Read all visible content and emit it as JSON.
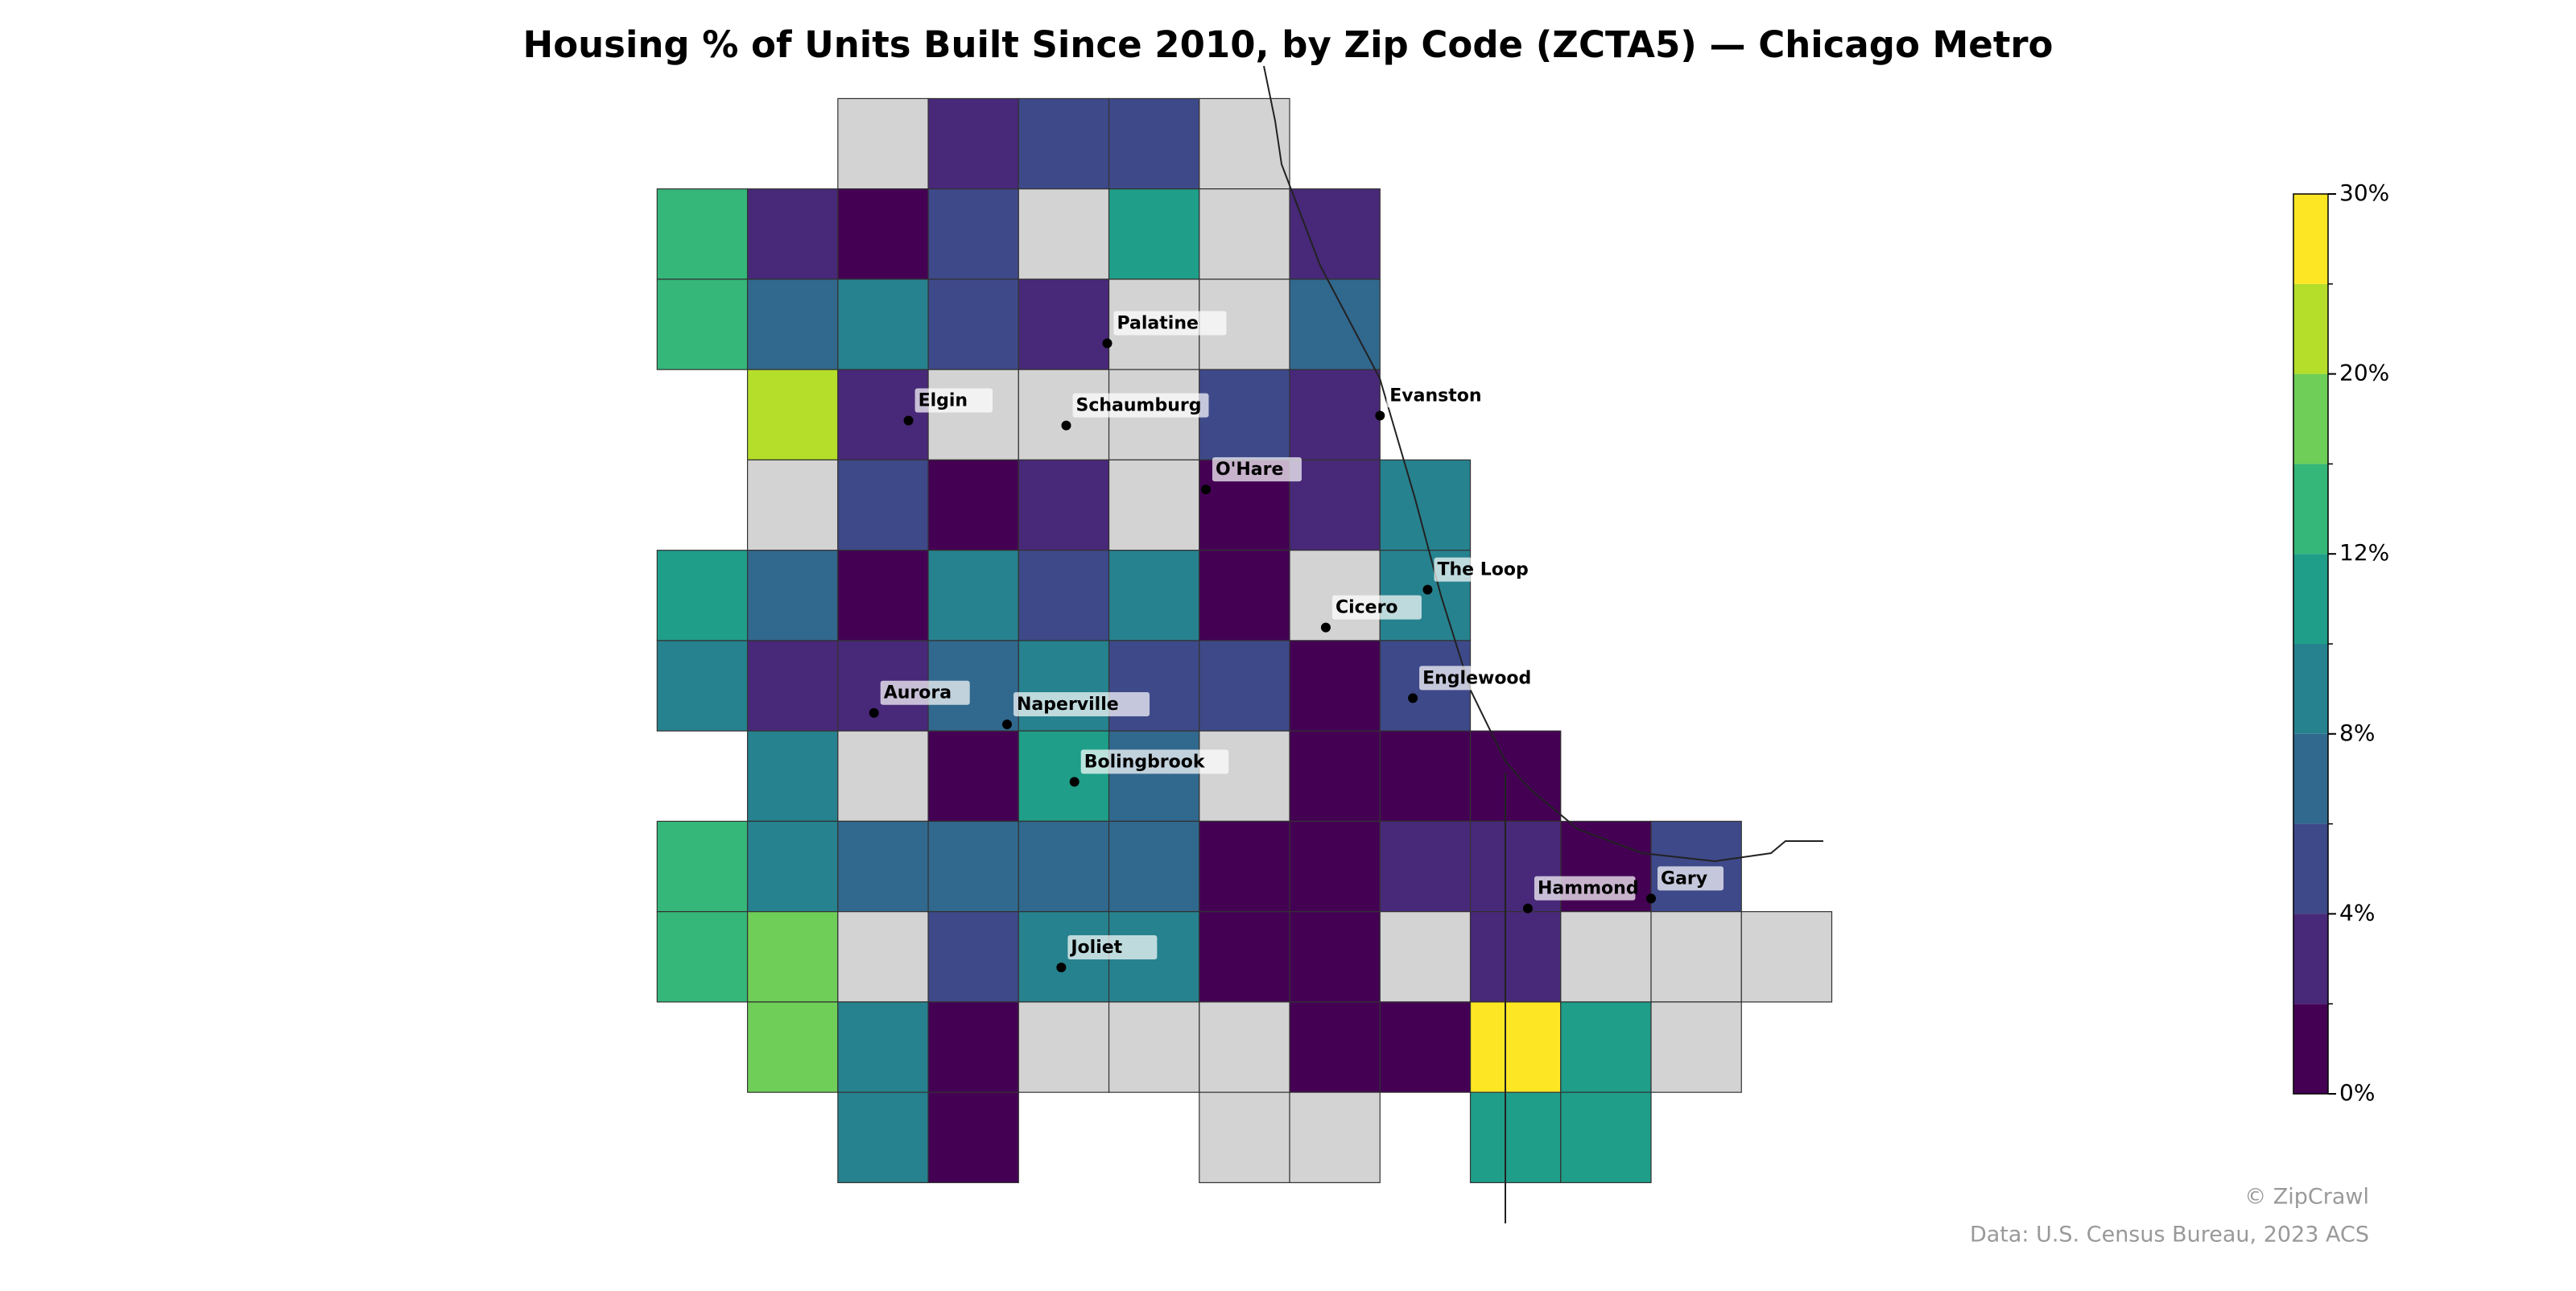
{
  "chart_data": {
    "type": "choropleth",
    "title": "Housing % of Units Built Since 2010, by Zip Code (ZCTA5) — Chicago Metro",
    "cell_values": [
      null,
      3,
      5,
      5,
      null,
      14,
      3,
      1,
      5,
      null,
      10,
      null,
      3,
      14,
      6,
      8,
      5,
      3,
      null,
      null,
      6,
      22,
      3,
      null,
      null,
      null,
      5,
      3,
      null,
      5,
      1,
      3,
      null,
      1,
      3,
      9,
      11,
      6,
      1,
      8,
      5,
      9,
      1,
      null,
      9,
      9,
      3,
      3,
      7,
      9,
      5,
      5,
      1,
      5,
      8,
      null,
      1,
      10,
      6,
      null,
      1,
      1,
      1,
      14,
      8,
      6,
      6,
      6,
      6,
      1,
      1,
      3,
      3,
      1,
      5,
      14,
      18,
      null,
      5,
      8,
      9,
      1,
      1,
      null,
      3,
      null,
      null,
      null,
      18,
      8,
      1,
      null,
      null,
      null,
      1,
      1,
      28,
      11,
      null,
      8,
      1,
      null,
      null,
      11,
      11
    ],
    "missing_color": "#d3d3d3",
    "cities": [
      "Palatine",
      "Elgin",
      "Schaumburg",
      "Evanston",
      "O'Hare",
      "The Loop",
      "Cicero",
      "Englewood",
      "Aurora",
      "Naperville",
      "Bolingbrook",
      "Hammond",
      "Gary",
      "Joliet"
    ],
    "colorbar": {
      "bounds": [
        0,
        2,
        4,
        6,
        8,
        10,
        12,
        16,
        20,
        25,
        30
      ],
      "colors": [
        "#440154",
        "#482878",
        "#3e4989",
        "#31688e",
        "#26828e",
        "#1f9e89",
        "#35b779",
        "#6ece58",
        "#b5de2b",
        "#fde725"
      ],
      "ticks": [
        {
          "value": 0,
          "label": "0%"
        },
        {
          "value": 4,
          "label": "4%"
        },
        {
          "value": 8,
          "label": "8%"
        },
        {
          "value": 12,
          "label": "12%"
        },
        {
          "value": 20,
          "label": "20%"
        },
        {
          "value": 30,
          "label": "30%"
        }
      ]
    },
    "credit": "© ZipCrawl",
    "source": "Data: U.S. Census Bureau, 2023 ACS"
  }
}
